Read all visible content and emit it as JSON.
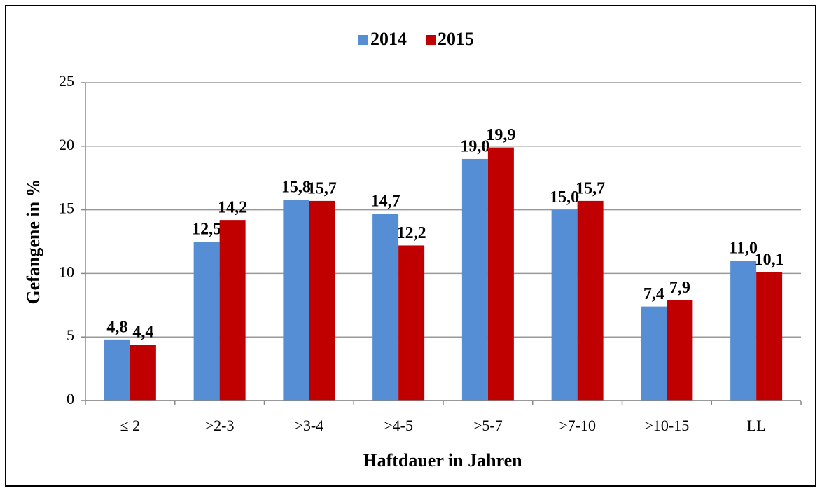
{
  "chart_data": {
    "type": "bar",
    "categories": [
      "≤ 2",
      ">2-3",
      ">3-4",
      ">4-5",
      ">5-7",
      ">7-10",
      ">10-15",
      "LL"
    ],
    "series": [
      {
        "name": "2014",
        "color": "#558ed5",
        "values": [
          4.8,
          12.5,
          15.8,
          14.7,
          19.0,
          15.0,
          7.4,
          11.0
        ],
        "value_labels": [
          "4,8",
          "12,5",
          "15,8",
          "14,7",
          "19,0",
          "15,0",
          "7,4",
          "11,0"
        ]
      },
      {
        "name": "2015",
        "color": "#c00000",
        "values": [
          4.4,
          14.2,
          15.7,
          12.2,
          19.9,
          15.7,
          7.9,
          10.1
        ],
        "value_labels": [
          "4,4",
          "14,2",
          "15,7",
          "12,2",
          "19,9",
          "15,7",
          "7,9",
          "10,1"
        ]
      }
    ],
    "ylabel": "Gefangene in %",
    "xlabel": "Haftdauer in Jahren",
    "ylim": [
      0,
      25
    ],
    "yticks": [
      0,
      5,
      10,
      15,
      20,
      25
    ],
    "grid": true,
    "legend": "top"
  }
}
